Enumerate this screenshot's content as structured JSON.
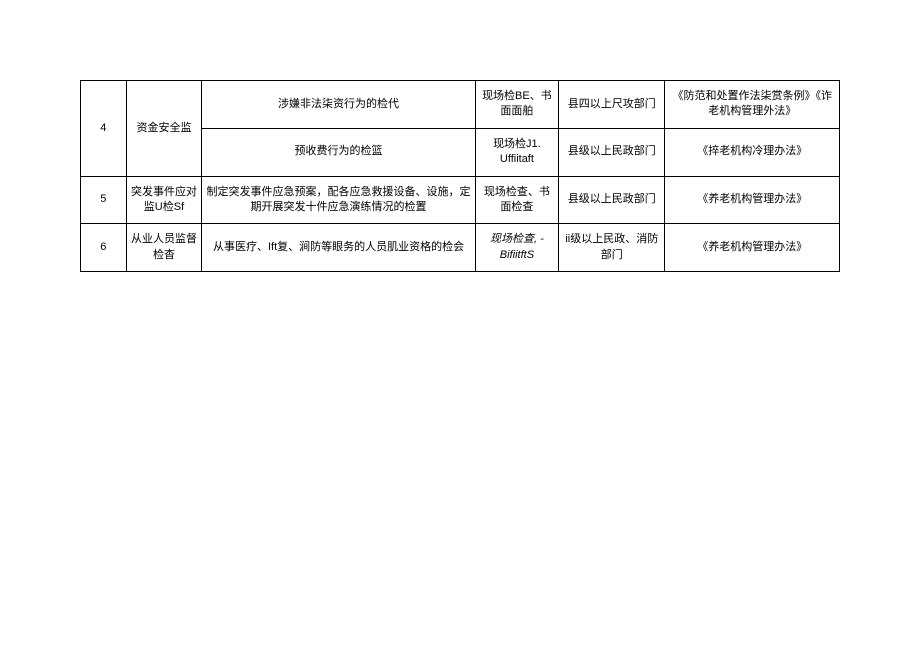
{
  "table": {
    "columns": {
      "num_width": "6%",
      "category_width": "10%",
      "content_width": "36%",
      "method_width": "11%",
      "dept_width": "14%",
      "basis_width": "23%"
    },
    "border_color": "#000000",
    "background_color": "#ffffff",
    "font_size": 11,
    "text_color": "#000000",
    "rows": [
      {
        "num": "4",
        "category": "资金安全监",
        "subrows": [
          {
            "content": "涉嫌非法柒资行为的检代",
            "method": "现场检BE、书面面舶",
            "dept": "县四以上尺攻部门",
            "basis": "《防范和处置作法柒赏条例》《诈老机构管理外法》"
          },
          {
            "content": "预收费行为的检篮",
            "method": "现场检J1. Uffiitaft",
            "dept": "县级以上民政部门",
            "basis": "《捽老机构冷理办法》"
          }
        ]
      },
      {
        "num": "5",
        "category": "突发事件应对监U检Sf",
        "content": "制定突发事件应急预案，配各应急救援设备、设施，定期开展突发十件应急演练情况的检置",
        "method": "现场检查、书面检查",
        "dept": "县级以上民政部门",
        "basis": "《养老机构管理办法》"
      },
      {
        "num": "6",
        "category": "从业人员监督检杳",
        "content": "从事医疗、Ift复、涧防等眼务的人员肌业资格的检会",
        "method": "现场检查, -BifiitftS",
        "method_italic": true,
        "dept": "ii级以上民政、消防部门",
        "basis": "《养老机构管理办法》"
      }
    ]
  }
}
